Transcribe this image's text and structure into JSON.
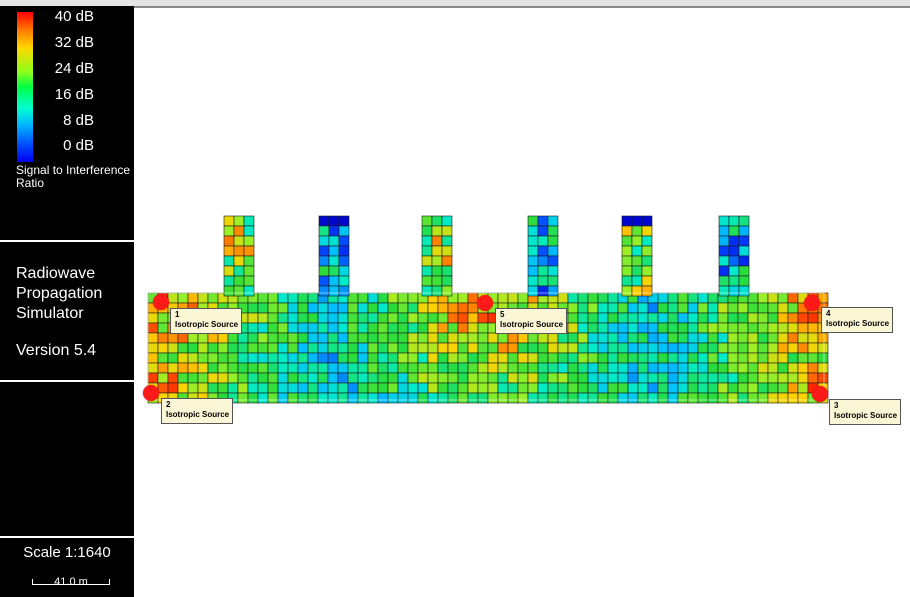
{
  "legend": {
    "db_labels": [
      "40 dB",
      "32 dB",
      "24 dB",
      "16 dB",
      "8 dB",
      "0 dB"
    ],
    "caption": "Signal to Interference Ratio"
  },
  "app": {
    "title": "Radiowave Propagation Simulator",
    "version": "Version 5.4"
  },
  "scale": {
    "text": "Scale 1:1640",
    "length": "41.0 m"
  },
  "sources": [
    {
      "number": "1",
      "label": "Isotropic Source"
    },
    {
      "number": "2",
      "label": "Isotropic Source"
    },
    {
      "number": "3",
      "label": "Isotropic Source"
    },
    {
      "number": "4",
      "label": "Isotropic Source"
    },
    {
      "number": "5",
      "label": "Isotropic Source"
    }
  ],
  "colors": {
    "source_dot": "#ff1a1a",
    "label_bg": "#fbf7d6",
    "panel_bg": "#000000"
  }
}
